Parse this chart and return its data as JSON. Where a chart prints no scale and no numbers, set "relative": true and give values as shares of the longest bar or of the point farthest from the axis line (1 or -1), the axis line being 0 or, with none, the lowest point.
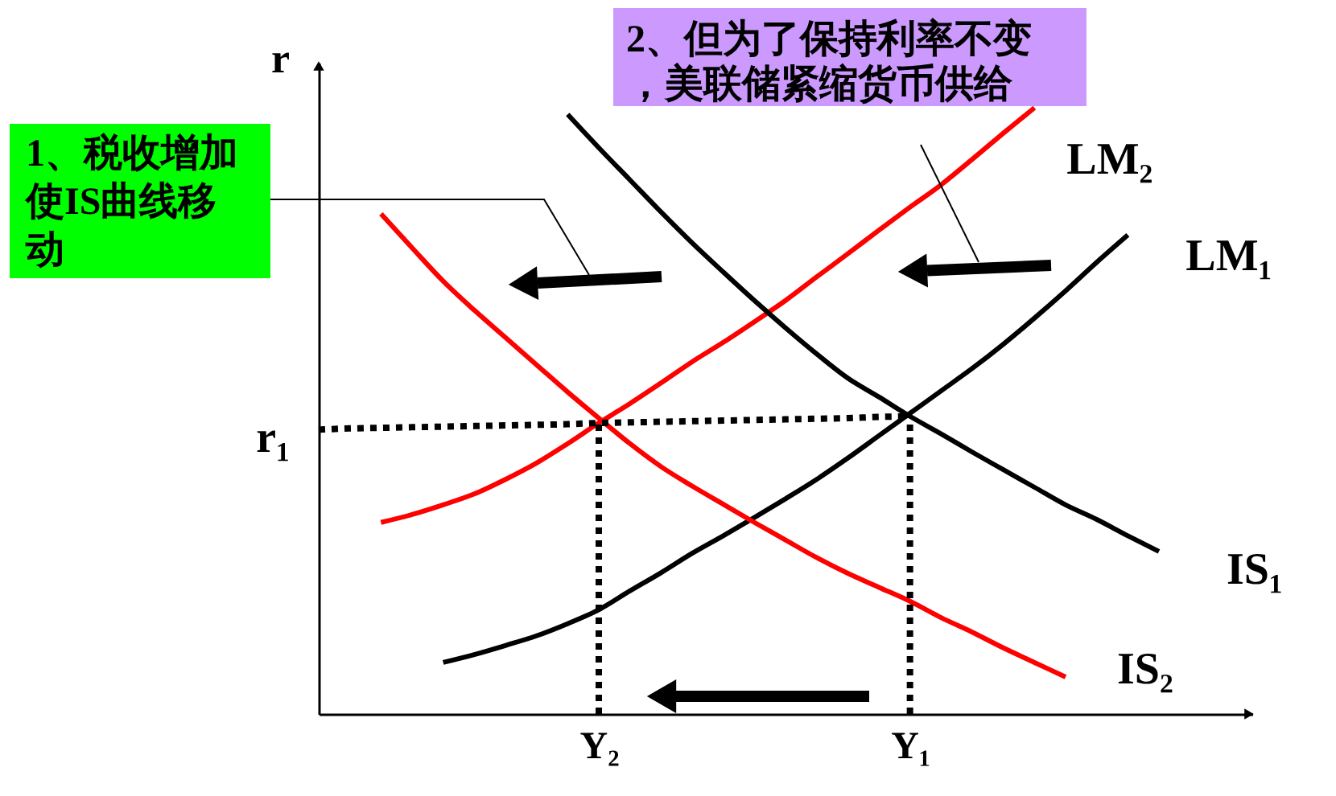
{
  "chart_data": {
    "type": "line",
    "relative": true,
    "ylabel": "r",
    "grid": false,
    "legend": false,
    "categories": [
      null,
      null,
      null,
      null,
      null,
      null,
      null,
      null,
      null,
      "Y₂",
      null,
      null,
      null,
      null,
      null,
      null,
      null,
      null,
      null,
      "Y₁",
      null,
      null,
      null,
      null,
      null,
      null,
      null,
      null,
      null,
      null,
      null
    ],
    "annotations": [
      "1、税收增加使IS曲线移动",
      "2、但为了保持利率不变，美联储紧缩货币供给"
    ],
    "series": [
      {
        "name": "LM₂",
        "color": "#ff0000",
        "values": [
          null,
          null,
          0.316,
          0.329,
          0.345,
          0.363,
          0.387,
          0.414,
          0.446,
          0.48,
          0.512,
          0.546,
          0.581,
          0.613,
          0.647,
          0.682,
          0.721,
          0.759,
          0.798,
          0.836,
          0.873,
          0.915,
          0.958,
          1.0,
          null,
          null,
          null,
          null,
          null,
          null,
          null
        ]
      },
      {
        "name": "LM₁",
        "color": "#000000",
        "values": [
          null,
          null,
          null,
          null,
          0.085,
          0.098,
          0.113,
          0.129,
          0.149,
          0.172,
          0.203,
          0.233,
          0.265,
          0.294,
          0.324,
          0.355,
          0.387,
          0.422,
          0.459,
          0.496,
          0.533,
          0.57,
          0.61,
          0.653,
          0.698,
          0.745,
          0.79,
          null,
          null,
          null,
          null
        ]
      },
      {
        "name": "IS₁",
        "color": "#000000",
        "values": [
          null,
          null,
          null,
          null,
          null,
          null,
          null,
          null,
          0.989,
          0.934,
          0.881,
          0.828,
          0.777,
          0.729,
          0.682,
          0.637,
          0.594,
          0.554,
          0.523,
          0.491,
          0.462,
          0.432,
          0.403,
          0.374,
          0.345,
          0.321,
          0.294,
          0.268,
          null,
          null,
          null
        ]
      },
      {
        "name": "IS₂",
        "color": "#ff0000",
        "values": [
          null,
          null,
          0.825,
          0.769,
          0.714,
          0.666,
          0.621,
          0.576,
          0.531,
          0.488,
          0.446,
          0.408,
          0.376,
          0.346,
          0.316,
          0.287,
          0.258,
          0.232,
          0.209,
          0.186,
          0.159,
          0.135,
          0.109,
          0.085,
          0.061,
          null,
          null,
          null,
          null,
          null,
          null
        ]
      },
      {
        "name": "r₁",
        "color": "#000000",
        "line_style": "dotted",
        "values": [
          0.469,
          0.471,
          0.472,
          0.473,
          0.474,
          0.475,
          0.476,
          0.477,
          0.478,
          0.48,
          0.481,
          0.482,
          0.483,
          0.484,
          0.485,
          0.486,
          0.487,
          0.488,
          0.49,
          0.491,
          null,
          null,
          null,
          null,
          null,
          null,
          null,
          null,
          null,
          null,
          null
        ]
      },
      {
        "color": "#000000",
        "line_style": "dotted",
        "x": [
          "Y₂",
          "Y₂"
        ],
        "values": [
          0,
          0.485
        ]
      },
      {
        "color": "#000000",
        "line_style": "dotted",
        "x": [
          "Y₁",
          "Y₁"
        ],
        "values": [
          0,
          0.491
        ]
      }
    ]
  }
}
